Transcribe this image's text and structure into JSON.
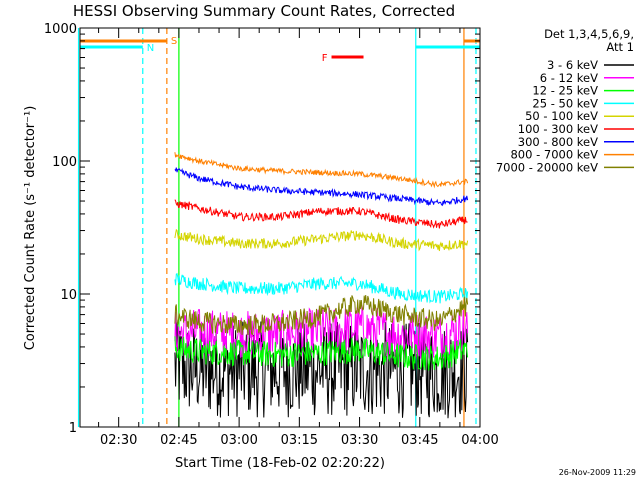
{
  "chart_data": {
    "type": "line",
    "title": "HESSI Observing Summary Count Rates, Corrected",
    "xlabel": "Start Time (18-Feb-02 02:20:22)",
    "ylabel": "Corrected Count Rate (s⁻¹ detector⁻¹)",
    "y_scale": "log",
    "ylim": [
      1,
      1000
    ],
    "xlim": [
      "02:20:22",
      "04:00"
    ],
    "x_ticks": [
      "02:30",
      "02:45",
      "03:00",
      "03:15",
      "03:30",
      "03:45",
      "04:00"
    ],
    "y_ticks": [
      "1",
      "10",
      "100",
      "1000"
    ],
    "grid": false,
    "legend": {
      "placement": "right",
      "header": [
        "Det 1,3,4,5,6,9,",
        "Att 1"
      ],
      "entries": [
        {
          "label": "3 - 6 keV",
          "color": "#000000"
        },
        {
          "label": "6 - 12 keV",
          "color": "#ff00ff"
        },
        {
          "label": "12 - 25 keV",
          "color": "#00ff00"
        },
        {
          "label": "25 - 50 keV",
          "color": "#00ffff"
        },
        {
          "label": "50 - 100 keV",
          "color": "#d4d400"
        },
        {
          "label": "100 - 300 keV",
          "color": "#ff0000"
        },
        {
          "label": "300 - 800 keV",
          "color": "#0000ff"
        },
        {
          "label": "800 - 7000 keV",
          "color": "#ff8000"
        },
        {
          "label": "7000 - 20000 keV",
          "color": "#808000"
        }
      ]
    },
    "data_window": [
      "02:44",
      "03:57"
    ],
    "series": [
      {
        "name": "3 - 6 keV",
        "color": "#000000",
        "x": [
          "02:44",
          "02:50",
          "03:00",
          "03:10",
          "03:20",
          "03:30",
          "03:40",
          "03:50",
          "03:56"
        ],
        "y": [
          2.8,
          2.7,
          2.7,
          2.7,
          2.7,
          2.7,
          2.7,
          2.6,
          2.7
        ]
      },
      {
        "name": "6 - 12 keV",
        "color": "#ff00ff",
        "x": [
          "02:44",
          "02:50",
          "03:00",
          "03:10",
          "03:20",
          "03:30",
          "03:40",
          "03:50",
          "03:56"
        ],
        "y": [
          5.0,
          5.2,
          5.0,
          5.0,
          5.2,
          5.6,
          5.0,
          4.8,
          5.5
        ]
      },
      {
        "name": "12 - 25 keV",
        "color": "#00ff00",
        "x": [
          "02:44",
          "02:50",
          "03:00",
          "03:10",
          "03:20",
          "03:30",
          "03:40",
          "03:50",
          "03:56"
        ],
        "y": [
          3.9,
          3.7,
          3.6,
          3.5,
          3.6,
          3.8,
          3.4,
          3.3,
          3.8
        ]
      },
      {
        "name": "25 - 50 keV",
        "color": "#00ffff",
        "x": [
          "02:44",
          "02:50",
          "03:00",
          "03:10",
          "03:20",
          "03:30",
          "03:40",
          "03:50",
          "03:56"
        ],
        "y": [
          13,
          12,
          11,
          11,
          12,
          12,
          10,
          9.5,
          10
        ]
      },
      {
        "name": "50 - 100 keV",
        "color": "#d4d400",
        "x": [
          "02:44",
          "02:50",
          "03:00",
          "03:10",
          "03:20",
          "03:30",
          "03:40",
          "03:50",
          "03:56"
        ],
        "y": [
          28,
          26,
          24,
          24,
          26,
          28,
          24,
          23,
          24
        ]
      },
      {
        "name": "100 - 300 keV",
        "color": "#ff0000",
        "x": [
          "02:44",
          "02:50",
          "03:00",
          "03:10",
          "03:20",
          "03:30",
          "03:40",
          "03:50",
          "03:56"
        ],
        "y": [
          48,
          44,
          38,
          38,
          42,
          42,
          36,
          33,
          36
        ]
      },
      {
        "name": "300 - 800 keV",
        "color": "#0000ff",
        "x": [
          "02:44",
          "02:50",
          "03:00",
          "03:10",
          "03:20",
          "03:30",
          "03:40",
          "03:50",
          "03:56"
        ],
        "y": [
          85,
          74,
          64,
          60,
          58,
          56,
          52,
          48,
          52
        ]
      },
      {
        "name": "800 - 7000 keV",
        "color": "#ff8000",
        "x": [
          "02:44",
          "02:50",
          "03:00",
          "03:10",
          "03:20",
          "03:30",
          "03:40",
          "03:50",
          "03:56"
        ],
        "y": [
          112,
          100,
          88,
          84,
          82,
          80,
          74,
          66,
          70
        ]
      },
      {
        "name": "7000 - 20000 keV",
        "color": "#808000",
        "x": [
          "02:44",
          "02:50",
          "03:00",
          "03:10",
          "03:20",
          "03:30",
          "03:40",
          "03:50",
          "03:56"
        ],
        "y": [
          7.0,
          6.2,
          5.8,
          6.0,
          6.8,
          8.5,
          7.0,
          6.2,
          8.0
        ]
      }
    ],
    "markers": [
      {
        "label": "N",
        "color": "#00ffff",
        "x": "02:36"
      },
      {
        "label": "S",
        "color": "#ff8000",
        "x": "02:42"
      },
      {
        "label": "F",
        "color": "#ff0000",
        "x": "03:27"
      }
    ],
    "vertical_lines": [
      {
        "color": "#00ffff",
        "x": "02:20"
      },
      {
        "color": "#00ffff",
        "x": "02:36",
        "style": "dashed"
      },
      {
        "color": "#ff8000",
        "x": "02:42",
        "style": "dashed"
      },
      {
        "color": "#00ff00",
        "x": "02:45"
      },
      {
        "color": "#00ffff",
        "x": "03:44"
      },
      {
        "color": "#ff8000",
        "x": "03:56"
      },
      {
        "color": "#00ffff",
        "x": "03:59",
        "style": "dashed"
      }
    ]
  },
  "footer": {
    "timestamp": "26-Nov-2009 11:29"
  }
}
